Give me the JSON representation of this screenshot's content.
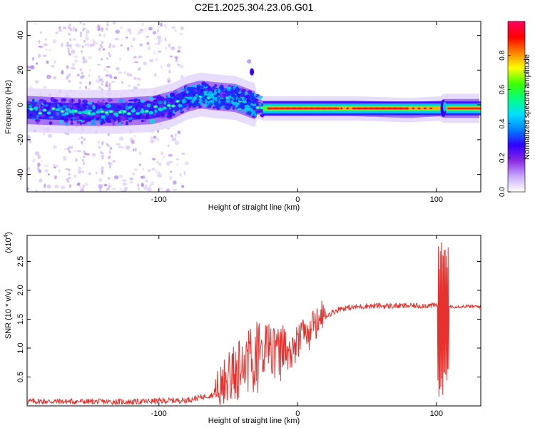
{
  "title": "C2E1.2025.304.23.06.G01",
  "chart_data": [
    {
      "type": "heatmap",
      "name": "spectrogram",
      "xlabel": "Height of straight line (km)",
      "ylabel": "Frequency (Hz)",
      "xlim": [
        -195,
        132
      ],
      "ylim": [
        -50,
        48
      ],
      "xticks": [
        -100,
        0,
        100
      ],
      "yticks": [
        -40,
        -20,
        0,
        20,
        40
      ],
      "ridge": [
        {
          "x": -195,
          "f": -3
        },
        {
          "x": -160,
          "f": -4
        },
        {
          "x": -130,
          "f": -4
        },
        {
          "x": -105,
          "f": -3
        },
        {
          "x": -90,
          "f": 0
        },
        {
          "x": -80,
          "f": 4
        },
        {
          "x": -70,
          "f": 6
        },
        {
          "x": -60,
          "f": 5
        },
        {
          "x": -45,
          "f": 4
        },
        {
          "x": -35,
          "f": 1
        },
        {
          "x": -25,
          "f": -2
        },
        {
          "x": 0,
          "f": -2
        },
        {
          "x": 40,
          "f": -2
        },
        {
          "x": 80,
          "f": -3
        },
        {
          "x": 105,
          "f": -2
        },
        {
          "x": 132,
          "f": -2
        }
      ],
      "colorbar": {
        "label": "Normalized spectral amplitude",
        "ticks": [
          0.0,
          0.2,
          0.4,
          0.6,
          0.8
        ],
        "tick_labels": [
          "0.0",
          "0.2",
          "0.4",
          "0.6",
          "0.8"
        ],
        "colors": [
          "#ffffff",
          "#c9a8ff",
          "#8a2be2",
          "#3000ff",
          "#0080ff",
          "#00e0ff",
          "#00ff80",
          "#40ff00",
          "#ffff00",
          "#ff8000",
          "#ff0000",
          "#ff0060"
        ]
      }
    },
    {
      "type": "line",
      "name": "snr",
      "xlabel": "Height of straight line (km)",
      "ylabel": "SNR (10 * v/v)",
      "ylabel_exp": "(x10",
      "ylabel_exp_sup": "4",
      "ylabel_exp_close": ")",
      "xlim": [
        -195,
        132
      ],
      "ylim": [
        0,
        2.95
      ],
      "xticks": [
        -100,
        0,
        100
      ],
      "yticks": [
        0.5,
        1.0,
        1.5,
        2.0,
        2.5
      ],
      "ytick_labels": [
        "0.5",
        "1.0",
        "1.5",
        "2.0",
        "2.5"
      ],
      "line_color": "#e8312c",
      "trend": [
        {
          "x": -195,
          "y": 0.08
        },
        {
          "x": -120,
          "y": 0.07
        },
        {
          "x": -80,
          "y": 0.1
        },
        {
          "x": -60,
          "y": 0.2
        },
        {
          "x": -50,
          "y": 0.4
        },
        {
          "x": -40,
          "y": 0.65
        },
        {
          "x": -30,
          "y": 0.8
        },
        {
          "x": -20,
          "y": 0.85
        },
        {
          "x": -10,
          "y": 0.9
        },
        {
          "x": 0,
          "y": 1.05
        },
        {
          "x": 10,
          "y": 1.3
        },
        {
          "x": 20,
          "y": 1.55
        },
        {
          "x": 30,
          "y": 1.68
        },
        {
          "x": 50,
          "y": 1.73
        },
        {
          "x": 80,
          "y": 1.73
        },
        {
          "x": 103,
          "y": 1.74
        },
        {
          "x": 112,
          "y": 1.72
        },
        {
          "x": 132,
          "y": 1.72
        }
      ],
      "spike": {
        "x": 105,
        "peak": 2.95,
        "low": 0.15
      }
    }
  ]
}
